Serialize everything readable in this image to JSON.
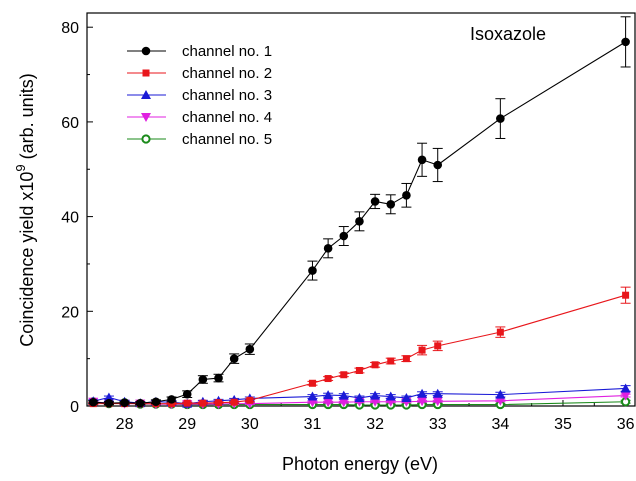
{
  "chart_data": {
    "type": "line",
    "xlabel": "Photon energy (eV)",
    "ylabel": "Coincidence yield x10",
    "ylabel_exp": "9",
    "ylabel_units": " (arb. units)",
    "annotation": "Isoxazole",
    "xlim": [
      27.4,
      36.15
    ],
    "ylim": [
      0,
      83
    ],
    "xticks": [
      28,
      29,
      30,
      31,
      32,
      33,
      34,
      35,
      36
    ],
    "yticks": [
      0,
      20,
      40,
      60,
      80
    ],
    "grid": false,
    "legend_position": "top-left",
    "series": [
      {
        "name": "channel no. 1",
        "color": "#000000",
        "marker": "circle",
        "x": [
          27.5,
          27.75,
          28.0,
          28.25,
          28.5,
          28.75,
          29.0,
          29.25,
          29.5,
          29.75,
          30.0,
          31.0,
          31.25,
          31.5,
          31.75,
          32.0,
          32.25,
          32.5,
          32.75,
          33.0,
          34.0,
          36.0
        ],
        "y": [
          0.8,
          0.6,
          0.7,
          0.6,
          0.9,
          1.4,
          2.5,
          5.6,
          5.9,
          10.0,
          12.0,
          28.6,
          33.3,
          35.9,
          39.0,
          43.2,
          42.6,
          44.5,
          52.0,
          50.9,
          60.7,
          76.9
        ],
        "err": [
          0.3,
          0.3,
          0.3,
          0.3,
          0.4,
          0.5,
          0.7,
          0.8,
          0.8,
          1.0,
          1.1,
          2.0,
          2.0,
          2.0,
          2.0,
          1.5,
          2.0,
          2.5,
          3.5,
          3.5,
          4.2,
          5.3
        ]
      },
      {
        "name": "channel no. 2",
        "color": "#e8161b",
        "marker": "square",
        "x": [
          27.5,
          27.75,
          28.0,
          28.25,
          28.5,
          28.75,
          29.0,
          29.25,
          29.5,
          29.75,
          30.0,
          31.0,
          31.25,
          31.5,
          31.75,
          32.0,
          32.25,
          32.5,
          32.75,
          33.0,
          34.0,
          36.0
        ],
        "y": [
          0.5,
          0.5,
          0.5,
          0.5,
          0.5,
          0.5,
          0.6,
          0.6,
          0.7,
          0.8,
          1.2,
          4.8,
          5.8,
          6.6,
          7.5,
          8.7,
          9.5,
          10.0,
          11.8,
          12.7,
          15.6,
          23.4
        ],
        "err": [
          0.2,
          0.2,
          0.2,
          0.2,
          0.2,
          0.2,
          0.2,
          0.2,
          0.2,
          0.2,
          0.3,
          0.4,
          0.4,
          0.4,
          0.5,
          0.5,
          0.6,
          0.6,
          1.0,
          1.0,
          1.1,
          1.7
        ]
      },
      {
        "name": "channel no. 3",
        "color": "#1a1ad6",
        "marker": "triangle-up",
        "x": [
          27.5,
          27.75,
          28.0,
          28.25,
          28.5,
          28.75,
          29.0,
          29.25,
          29.5,
          29.75,
          30.0,
          31.0,
          31.25,
          31.5,
          31.75,
          32.0,
          32.25,
          32.5,
          32.75,
          33.0,
          34.0,
          36.0
        ],
        "y": [
          1.0,
          1.8,
          0.9,
          0.6,
          0.9,
          0.8,
          0.5,
          0.9,
          1.1,
          1.3,
          1.6,
          2.0,
          2.3,
          2.2,
          1.7,
          2.2,
          2.0,
          1.7,
          2.6,
          2.6,
          2.4,
          3.7
        ],
        "err": [
          0.3,
          0.3,
          0.3,
          0.3,
          0.3,
          0.3,
          0.3,
          0.3,
          0.3,
          0.3,
          0.3,
          0.4,
          0.4,
          0.4,
          0.4,
          0.4,
          0.4,
          0.4,
          0.4,
          0.4,
          0.5,
          0.6
        ]
      },
      {
        "name": "channel no. 4",
        "color": "#e020e0",
        "marker": "triangle-down",
        "x": [
          27.5,
          27.75,
          28.0,
          28.25,
          28.5,
          28.75,
          29.0,
          29.25,
          29.5,
          29.75,
          30.0,
          31.0,
          31.25,
          31.5,
          31.75,
          32.0,
          32.25,
          32.5,
          32.75,
          33.0,
          34.0,
          36.0
        ],
        "y": [
          0.9,
          0.6,
          0.5,
          0.5,
          0.4,
          0.4,
          0.4,
          0.4,
          0.4,
          0.5,
          0.5,
          0.8,
          0.8,
          0.8,
          0.9,
          0.9,
          0.9,
          0.9,
          1.0,
          1.0,
          1.1,
          2.2
        ],
        "err": [
          0.2,
          0.2,
          0.2,
          0.2,
          0.2,
          0.2,
          0.2,
          0.2,
          0.2,
          0.2,
          0.2,
          0.2,
          0.2,
          0.2,
          0.2,
          0.2,
          0.2,
          0.2,
          0.2,
          0.2,
          0.2,
          0.3
        ]
      },
      {
        "name": "channel no. 5",
        "color": "#1a8a1a",
        "marker": "circle-open",
        "x": [
          27.5,
          27.75,
          28.0,
          28.25,
          28.5,
          28.75,
          29.0,
          29.25,
          29.5,
          29.75,
          30.0,
          31.0,
          31.25,
          31.5,
          31.75,
          32.0,
          32.25,
          32.5,
          32.75,
          33.0,
          34.0,
          36.0
        ],
        "y": [
          0.9,
          0.5,
          0.7,
          0.4,
          0.4,
          0.4,
          0.3,
          0.3,
          0.3,
          0.3,
          0.3,
          0.3,
          0.3,
          0.3,
          0.2,
          0.2,
          0.2,
          0.2,
          0.3,
          0.3,
          0.3,
          0.9
        ],
        "err": [
          0.2,
          0.2,
          0.2,
          0.2,
          0.2,
          0.2,
          0.2,
          0.2,
          0.2,
          0.2,
          0.2,
          0.2,
          0.2,
          0.2,
          0.2,
          0.2,
          0.2,
          0.2,
          0.2,
          0.2,
          0.2,
          0.3
        ]
      }
    ]
  }
}
